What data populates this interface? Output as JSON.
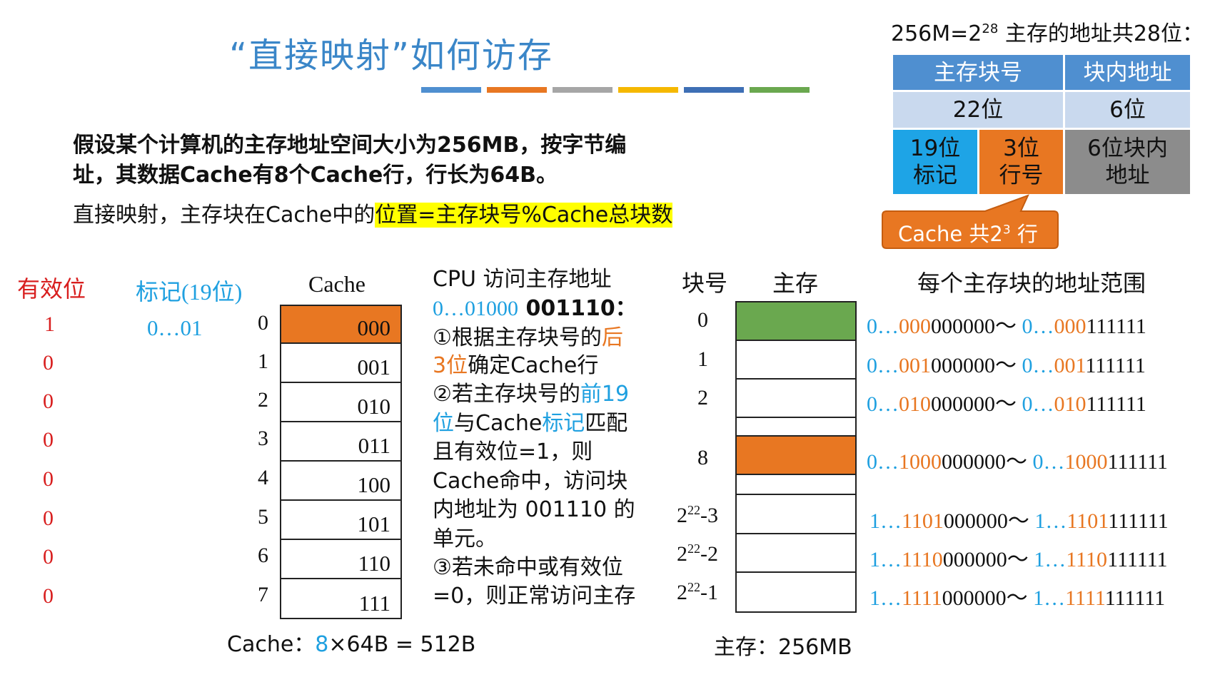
{
  "title": "“直接映射”如何访存",
  "title_bar_colors": [
    "#4f8fd0",
    "#e87722",
    "#a6a6a6",
    "#f5b800",
    "#3e6fb5",
    "#6aa84f"
  ],
  "intro": {
    "line1": "假设某个计算机的主存地址空间大小为256MB，按字节编",
    "line2": "址，其数据Cache有8个Cache行，行长为64B。",
    "line3_plain": "直接映射，主存块在Cache中的",
    "line3_highlight": "位置=主存块号%Cache总块数"
  },
  "address_table": {
    "caption_prefix": "256M=2",
    "caption_exp": "28",
    "caption_suffix": " 主存的地址共28位：",
    "head_block": "主存块号",
    "head_offset": "块内地址",
    "bits_block": "22位",
    "bits_offset": "6位",
    "tag_line1": "19位",
    "tag_line2": "标记",
    "line_line1": "3位",
    "line_line2": "行号",
    "off_line1": "6位块内",
    "off_line2": "地址",
    "callout_prefix": "Cache 共2",
    "callout_exp": "3",
    "callout_suffix": " 行"
  },
  "cache": {
    "valid_header": "有效位",
    "tag_header": "标记(19位)",
    "cache_header": "Cache",
    "valid_bits": [
      "1",
      "0",
      "0",
      "0",
      "0",
      "0",
      "0",
      "0"
    ],
    "tag_row0": "0…01",
    "line_numbers": [
      "0",
      "1",
      "2",
      "3",
      "4",
      "5",
      "6",
      "7"
    ],
    "line_codes": [
      "000",
      "001",
      "010",
      "011",
      "100",
      "101",
      "110",
      "111"
    ],
    "footer_label": "Cache：",
    "footer_count": "8",
    "footer_rest": "×64B = 512B"
  },
  "cpu_steps": {
    "heading": "CPU 访问主存地址",
    "addr_blue": "0…01000",
    "addr_black": " 001110：",
    "s1a": "①根据主存块号的",
    "s1b": "后",
    "s1c": "3位",
    "s1d": "确定Cache行",
    "s2a": "②若主存块号的",
    "s2b": "前19",
    "s2c": "位",
    "s2d": "与Cache",
    "s2e": "标记",
    "s2f": "匹配",
    "s2g": "且有效位=1，则",
    "s2h": "Cache命中，访问块",
    "s2i": "内地址为 001110 的",
    "s2j": "单元。",
    "s3a": "③若未命中或有效位",
    "s3b": "=0，则正常访问主存"
  },
  "memory": {
    "block_header": "块号",
    "mem_header": "主存",
    "range_header": "每个主存块的地址范围",
    "rows": [
      {
        "no": "0",
        "b1": "0…",
        "b2": "000",
        "b3": "000000",
        "sep": "～ ",
        "e1": "0…",
        "e2": "000",
        "e3": "111111"
      },
      {
        "no": "1",
        "b1": "0…",
        "b2": "001",
        "b3": "000000",
        "sep": "～ ",
        "e1": "0…",
        "e2": "001",
        "e3": "111111"
      },
      {
        "no": "2",
        "b1": "0…",
        "b2": "010",
        "b3": "000000",
        "sep": "～ ",
        "e1": "0…",
        "e2": "010",
        "e3": "111111"
      },
      {
        "no": "8",
        "b1": "0…",
        "b2": "1000",
        "b3": "000000",
        "sep": "～ ",
        "e1": "0…",
        "e2": "1000",
        "e3": "111111"
      },
      {
        "no_base": "2",
        "no_exp": "22",
        "no_tail": "-3",
        "b1": "1…",
        "b2": "1101",
        "b3": "000000",
        "sep": "～ ",
        "e1": "1…",
        "e2": "1101",
        "e3": "111111"
      },
      {
        "no_base": "2",
        "no_exp": "22",
        "no_tail": "-2",
        "b1": "1…",
        "b2": "1110",
        "b3": "000000",
        "sep": "～ ",
        "e1": "1…",
        "e2": "1110",
        "e3": "111111"
      },
      {
        "no_base": "2",
        "no_exp": "22",
        "no_tail": "-1",
        "b1": "1…",
        "b2": "1111",
        "b3": "000000",
        "sep": "～ ",
        "e1": "1…",
        "e2": "1111",
        "e3": "111111"
      }
    ],
    "footer": "主存：256MB"
  },
  "colors": {
    "header_blue": "#4f8fd0",
    "light_blue": "#c9d9ee",
    "tag_blue": "#1ea4e6",
    "line_orange": "#e87722",
    "offset_gray": "#8c8c8c",
    "block_green": "#6aa84f"
  }
}
